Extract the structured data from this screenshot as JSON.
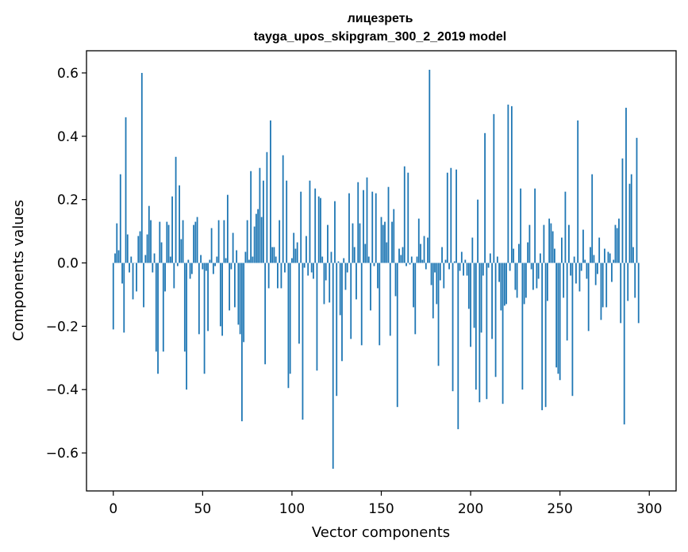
{
  "chart_data": {
    "type": "bar",
    "title": "лицезреть",
    "subtitle": "tayga_upos_skipgram_300_2_2019 model",
    "xlabel": "Vector components",
    "ylabel": "Components values",
    "xlim": [
      -15,
      315
    ],
    "ylim": [
      -0.72,
      0.67
    ],
    "x_ticks": [
      0,
      50,
      100,
      150,
      200,
      250,
      300
    ],
    "x_tick_labels": [
      "0",
      "50",
      "100",
      "150",
      "200",
      "250",
      "300"
    ],
    "y_ticks": [
      -0.6,
      -0.4,
      -0.2,
      0.0,
      0.2,
      0.4,
      0.6
    ],
    "y_tick_labels": [
      "−0.6",
      "−0.4",
      "−0.2",
      "0.0",
      "0.2",
      "0.4",
      "0.6"
    ],
    "bar_color": "#1f77b4",
    "grid": false,
    "values": [
      -0.21,
      0.03,
      0.125,
      0.04,
      0.28,
      -0.065,
      -0.22,
      0.46,
      0.09,
      -0.03,
      0.02,
      -0.115,
      0.0,
      -0.09,
      0.085,
      0.1,
      0.6,
      -0.14,
      0.025,
      0.09,
      0.18,
      0.135,
      -0.03,
      0.03,
      -0.28,
      -0.35,
      0.13,
      0.065,
      -0.28,
      -0.09,
      0.13,
      0.12,
      0.02,
      0.21,
      -0.08,
      0.335,
      -0.01,
      0.245,
      0.075,
      0.135,
      -0.28,
      -0.4,
      0.01,
      -0.05,
      -0.035,
      0.12,
      0.13,
      0.145,
      -0.225,
      0.025,
      -0.02,
      -0.35,
      -0.025,
      -0.215,
      0.01,
      0.11,
      -0.035,
      -0.01,
      0.02,
      0.135,
      -0.2,
      -0.23,
      0.135,
      0.015,
      0.215,
      -0.15,
      -0.02,
      0.095,
      -0.14,
      0.04,
      -0.195,
      -0.225,
      -0.5,
      -0.25,
      0.035,
      0.135,
      0.01,
      0.29,
      0.02,
      0.115,
      0.155,
      0.17,
      0.3,
      0.145,
      0.26,
      -0.32,
      0.35,
      -0.08,
      0.45,
      0.05,
      0.05,
      0.02,
      -0.08,
      0.135,
      -0.08,
      0.34,
      -0.03,
      0.26,
      -0.395,
      -0.35,
      0.015,
      0.095,
      0.045,
      0.065,
      -0.255,
      0.225,
      -0.495,
      -0.015,
      0.085,
      -0.04,
      0.26,
      -0.03,
      -0.05,
      0.235,
      -0.34,
      0.21,
      0.205,
      0.02,
      -0.13,
      -0.055,
      0.12,
      -0.125,
      0.035,
      -0.65,
      0.195,
      -0.42,
      0.005,
      -0.165,
      -0.31,
      0.015,
      -0.085,
      -0.03,
      0.22,
      -0.24,
      0.125,
      0.05,
      -0.115,
      0.255,
      0.125,
      -0.26,
      0.23,
      0.06,
      0.27,
      0.02,
      -0.15,
      0.225,
      -0.01,
      0.22,
      -0.08,
      -0.26,
      0.145,
      0.12,
      0.13,
      0.065,
      0.24,
      -0.23,
      0.13,
      0.17,
      -0.105,
      -0.455,
      0.045,
      0.025,
      0.05,
      0.305,
      -0.01,
      0.285,
      -0.005,
      0.02,
      -0.14,
      -0.225,
      0.02,
      0.14,
      0.06,
      0.01,
      0.085,
      -0.02,
      0.08,
      0.61,
      -0.07,
      -0.175,
      -0.03,
      -0.13,
      -0.325,
      -0.055,
      0.05,
      -0.08,
      0.01,
      0.285,
      -0.02,
      0.3,
      -0.405,
      0.005,
      0.295,
      -0.525,
      -0.025,
      0.035,
      -0.04,
      0.01,
      -0.04,
      -0.145,
      -0.265,
      0.08,
      -0.205,
      -0.4,
      0.2,
      -0.44,
      -0.22,
      -0.04,
      0.41,
      -0.43,
      -0.015,
      0.03,
      -0.24,
      0.47,
      -0.36,
      0.02,
      -0.06,
      -0.15,
      -0.445,
      -0.135,
      -0.13,
      0.5,
      -0.025,
      0.495,
      0.045,
      -0.085,
      -0.11,
      0.06,
      0.235,
      -0.4,
      -0.13,
      -0.11,
      0.065,
      0.12,
      -0.02,
      -0.085,
      0.235,
      -0.08,
      -0.05,
      0.03,
      -0.465,
      0.12,
      -0.455,
      -0.12,
      0.14,
      0.125,
      0.1,
      0.045,
      -0.33,
      -0.35,
      -0.37,
      0.08,
      -0.11,
      0.225,
      -0.245,
      0.12,
      -0.04,
      -0.42,
      0.02,
      -0.065,
      0.45,
      -0.09,
      -0.025,
      0.105,
      0.01,
      -0.05,
      -0.215,
      0.05,
      0.28,
      0.025,
      -0.07,
      -0.035,
      0.08,
      -0.18,
      -0.14,
      0.045,
      -0.14,
      0.035,
      0.03,
      -0.06,
      0.01,
      0.12,
      0.11,
      0.14,
      -0.19,
      0.33,
      -0.51,
      0.49,
      -0.12,
      0.25,
      0.28,
      0.05,
      -0.11,
      0.395,
      -0.19
    ]
  }
}
